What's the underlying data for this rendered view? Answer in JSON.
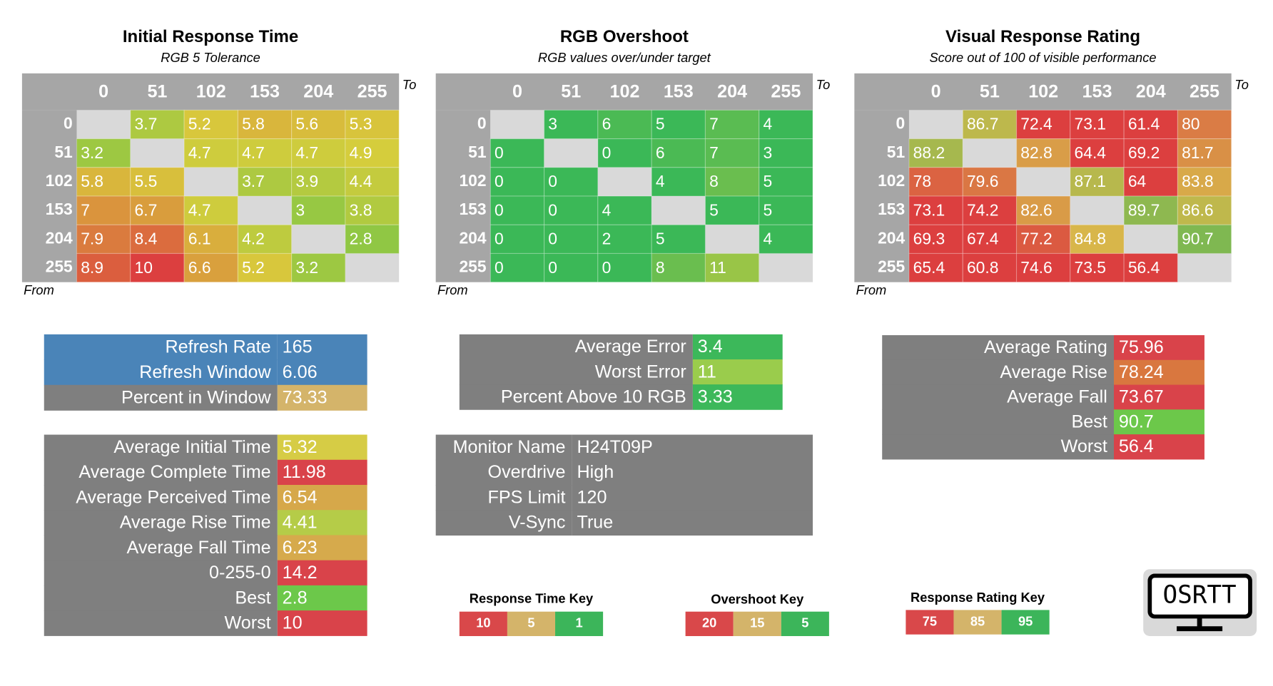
{
  "heatmaps": [
    {
      "title": "Initial Response Time",
      "subtitle": "RGB 5 Tolerance",
      "to_label": "To",
      "from_label": "From",
      "columns": [
        0,
        51,
        102,
        153,
        204,
        255
      ],
      "rows": [
        0,
        51,
        102,
        153,
        204,
        255
      ],
      "cell_colors": [
        "#dc3f3f",
        "#d8cd3c",
        "#55c24a"
      ],
      "values": [
        [
          null,
          3.7,
          5.2,
          5.8,
          5.6,
          5.3
        ],
        [
          3.2,
          null,
          4.7,
          4.7,
          4.7,
          4.9
        ],
        [
          5.8,
          5.5,
          null,
          3.7,
          3.9,
          4.4
        ],
        [
          7,
          6.7,
          4.7,
          null,
          3,
          3.8
        ],
        [
          7.9,
          8.4,
          6.1,
          4.2,
          null,
          2.8
        ],
        [
          8.9,
          10,
          6.6,
          5.2,
          3.2,
          null
        ]
      ]
    },
    {
      "title": "RGB Overshoot",
      "subtitle": "RGB values over/under target",
      "to_label": "To",
      "from_label": "From",
      "columns": [
        0,
        51,
        102,
        153,
        204,
        255
      ],
      "rows": [
        0,
        51,
        102,
        153,
        204,
        255
      ],
      "cell_colors": [
        "#dc3f3f",
        "#d8cd3c",
        "#3bb857"
      ],
      "values": [
        [
          null,
          3,
          6,
          5,
          7,
          4
        ],
        [
          0,
          null,
          0,
          6,
          7,
          3
        ],
        [
          0,
          0,
          null,
          4,
          8,
          5
        ],
        [
          0,
          0,
          4,
          null,
          5,
          5
        ],
        [
          0,
          0,
          2,
          5,
          null,
          4
        ],
        [
          0,
          0,
          0,
          8,
          11,
          null
        ]
      ]
    },
    {
      "title": "Visual Response Rating",
      "subtitle": "Score out of 100 of visible performance",
      "to_label": "To",
      "from_label": "From",
      "columns": [
        0,
        51,
        102,
        153,
        204,
        255
      ],
      "rows": [
        0,
        51,
        102,
        153,
        204,
        255
      ],
      "cell_colors": [
        "#dc3f3f",
        "#d8b84a",
        "#3bb857"
      ],
      "values": [
        [
          null,
          86.7,
          72.4,
          73.1,
          61.4,
          80
        ],
        [
          88.2,
          null,
          82.8,
          64.4,
          69.2,
          81.7
        ],
        [
          78,
          79.6,
          null,
          87.1,
          64,
          83.8
        ],
        [
          73.1,
          74.2,
          82.6,
          null,
          89.7,
          86.6
        ],
        [
          69.3,
          67.4,
          77.2,
          84.8,
          null,
          90.7
        ],
        [
          65.4,
          60.8,
          74.6,
          73.5,
          56.4,
          null
        ]
      ]
    }
  ],
  "stat_tables": [
    {
      "color": "#7f7f7f",
      "rows": [
        {
          "label": "Refresh Rate",
          "value": 165,
          "color": "#4a84b8",
          "label_color": "#4a84b8"
        },
        {
          "label": "Refresh Window",
          "value": 6.06,
          "color": "#4a84b8",
          "label_color": "#4a84b8"
        },
        {
          "label": "Percent in Window",
          "value": 73.33,
          "color": "#d4b46a"
        }
      ]
    },
    {
      "color": "#7f7f7f",
      "rows": [
        {
          "label": "Average Initial Time",
          "value": 5.32,
          "color": "#d6cc45"
        },
        {
          "label": "Average Complete Time",
          "value": 11.98,
          "color": "#d9434a"
        },
        {
          "label": "Average Perceived Time",
          "value": 6.54,
          "color": "#d6a84a"
        },
        {
          "label": "Average Rise Time",
          "value": 4.41,
          "color": "#b5cc48"
        },
        {
          "label": "Average Fall Time",
          "value": 6.23,
          "color": "#d6aa4c"
        },
        {
          "label": "0-255-0",
          "value": 14.2,
          "color": "#d9434a"
        },
        {
          "label": "Best",
          "value": 2.8,
          "color": "#6cc84a"
        },
        {
          "label": "Worst",
          "value": 10,
          "color": "#d9434a"
        }
      ]
    },
    {
      "color": "#7f7f7f",
      "rows": [
        {
          "label": "Average Error",
          "value": 3.4,
          "color": "#3cb85a"
        },
        {
          "label": "Worst Error",
          "value": 11,
          "color": "#9acc4c"
        },
        {
          "label": "Percent Above 10 RGB",
          "value": 3.33,
          "color": "#3cb85a"
        }
      ]
    },
    {
      "color": "#7f7f7f",
      "rows": [
        {
          "label": "Monitor Name",
          "value": "H24T09P"
        },
        {
          "label": "Overdrive",
          "value": "High"
        },
        {
          "label": "FPS Limit",
          "value": 120
        },
        {
          "label": "V-Sync",
          "value": "True"
        }
      ]
    },
    {
      "color": "#7f7f7f",
      "rows": [
        {
          "label": "Average Rating",
          "value": 75.96,
          "color": "#d9434a"
        },
        {
          "label": "Average Rise",
          "value": 78.24,
          "color": "#d9773f"
        },
        {
          "label": "Average Fall",
          "value": 73.67,
          "color": "#d9434a"
        },
        {
          "label": "Best",
          "value": 90.7,
          "color": "#6cc84a"
        },
        {
          "label": "Worst",
          "value": 56.4,
          "color": "#d9434a"
        }
      ]
    }
  ],
  "keys": [
    {
      "title": "Response Time Key",
      "items": [
        {
          "value": 10,
          "color": "#d9484a"
        },
        {
          "value": 5,
          "color": "#d4b46a"
        },
        {
          "value": 1,
          "color": "#3cb55a"
        }
      ]
    },
    {
      "title": "Overshoot Key",
      "items": [
        {
          "value": 20,
          "color": "#d9484a"
        },
        {
          "value": 15,
          "color": "#d4b46a"
        },
        {
          "value": 5,
          "color": "#3cb55a"
        }
      ]
    },
    {
      "title": "Response Rating Key",
      "items": [
        {
          "value": 75,
          "color": "#d9484a"
        },
        {
          "value": 85,
          "color": "#d4b46a"
        },
        {
          "value": 95,
          "color": "#3cb55a"
        }
      ]
    }
  ],
  "logo": "OSRTT"
}
